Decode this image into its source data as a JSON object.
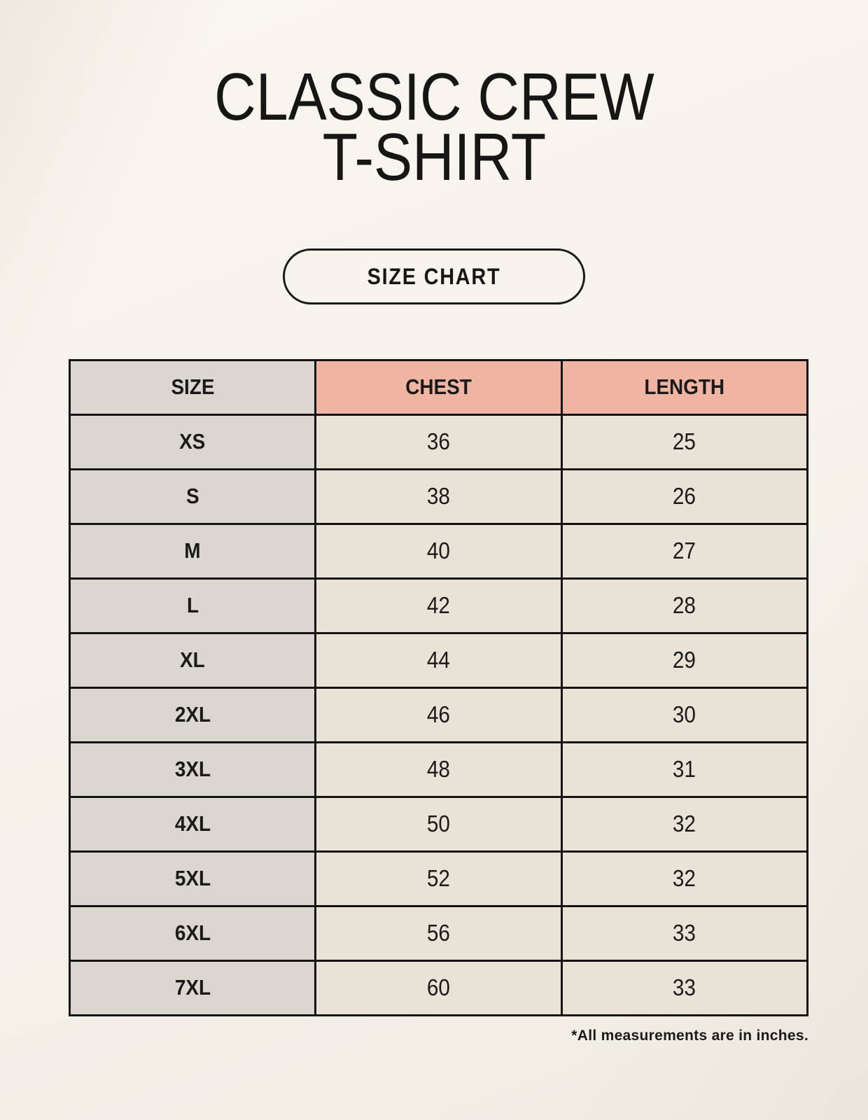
{
  "title": {
    "line1": "CLASSIC CREW",
    "line2": "T-SHIRT"
  },
  "size_chart_button": {
    "label": "SIZE CHART"
  },
  "table": {
    "headers": {
      "size": "SIZE",
      "chest": "CHEST",
      "length": "LENGTH"
    },
    "rows": [
      {
        "size": "XS",
        "chest": "36",
        "length": "25"
      },
      {
        "size": "S",
        "chest": "38",
        "length": "26"
      },
      {
        "size": "M",
        "chest": "40",
        "length": "27"
      },
      {
        "size": "L",
        "chest": "42",
        "length": "28"
      },
      {
        "size": "XL",
        "chest": "44",
        "length": "29"
      },
      {
        "size": "2XL",
        "chest": "46",
        "length": "30"
      },
      {
        "size": "3XL",
        "chest": "48",
        "length": "31"
      },
      {
        "size": "4XL",
        "chest": "50",
        "length": "32"
      },
      {
        "size": "5XL",
        "chest": "52",
        "length": "32"
      },
      {
        "size": "6XL",
        "chest": "56",
        "length": "33"
      },
      {
        "size": "7XL",
        "chest": "60",
        "length": "33"
      }
    ]
  },
  "footnote": "*All measurements are in inches.",
  "colors": {
    "background": "#f6f3ec",
    "header_accent": "#f0b5a2",
    "size_column_bg": "#dcd6d0",
    "cell_bg": "#e9e2d6",
    "border": "#141414",
    "text": "#1a1a1a"
  }
}
